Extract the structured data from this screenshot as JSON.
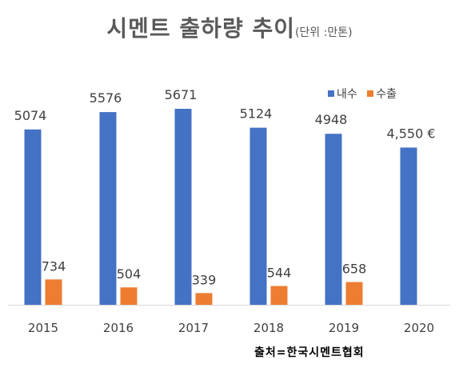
{
  "title": "시멘트 출하량 추이",
  "unit_note": "(단위 :만톤)",
  "source": "출처=한국시멘트협회",
  "chart_data": {
    "type": "bar",
    "categories": [
      "2015",
      "2016",
      "2017",
      "2018",
      "2019",
      "2020"
    ],
    "series": [
      {
        "name": "내수",
        "color": "#4472C4",
        "values": [
          5074,
          5576,
          5671,
          5124,
          4948,
          4550
        ],
        "labels": [
          "5074",
          "5576",
          "5671",
          "5124",
          "4948",
          "4,550 €"
        ]
      },
      {
        "name": "수출",
        "color": "#ED7D31",
        "values": [
          734,
          504,
          339,
          544,
          658,
          null
        ],
        "labels": [
          "734",
          "504",
          "339",
          "544",
          "658",
          ""
        ]
      }
    ],
    "ylim": [
      0,
      6000
    ],
    "grid": false,
    "legend": "top-right"
  }
}
